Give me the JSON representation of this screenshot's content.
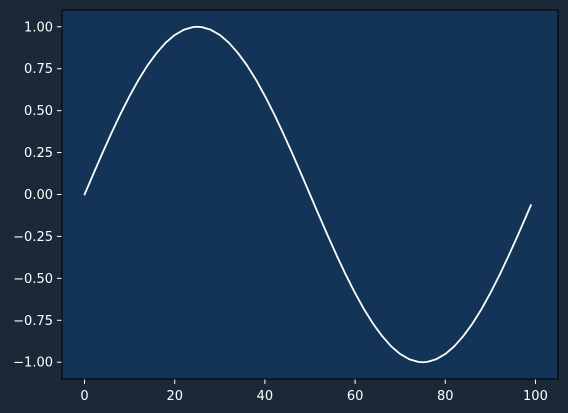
{
  "colors": {
    "figure_background": "#1b2838",
    "axes_background": "#133456",
    "line": "#ffffff",
    "text": "#ffffff",
    "axis_spine": "#000000"
  },
  "chart_data": {
    "type": "line",
    "title": "",
    "xlabel": "",
    "ylabel": "",
    "xlim": [
      -5,
      105
    ],
    "ylim": [
      -1.1,
      1.1
    ],
    "grid": false,
    "x_ticks": [
      0,
      20,
      40,
      60,
      80,
      100
    ],
    "x_tick_labels": [
      "0",
      "20",
      "40",
      "60",
      "80",
      "100"
    ],
    "y_ticks": [
      1.0,
      0.75,
      0.5,
      0.25,
      0.0,
      -0.25,
      -0.5,
      -0.75,
      -1.0
    ],
    "y_tick_labels": [
      "1.00",
      "0.75",
      "0.50",
      "0.25",
      "0.00",
      "−0.25",
      "−0.50",
      "−0.75",
      "−1.00"
    ],
    "series": [
      {
        "x": [
          0,
          2,
          4,
          6,
          8,
          10,
          12,
          14,
          16,
          18,
          20,
          22,
          24,
          25,
          26,
          28,
          30,
          32,
          34,
          36,
          38,
          40,
          42,
          44,
          46,
          48,
          50,
          52,
          54,
          56,
          58,
          60,
          62,
          64,
          66,
          68,
          70,
          72,
          74,
          75,
          76,
          78,
          80,
          82,
          84,
          86,
          88,
          90,
          92,
          94,
          96,
          98,
          99
        ],
        "y": [
          0.0,
          0.125,
          0.249,
          0.368,
          0.482,
          0.588,
          0.685,
          0.771,
          0.844,
          0.905,
          0.951,
          0.982,
          0.998,
          1.0,
          0.998,
          0.982,
          0.951,
          0.905,
          0.844,
          0.771,
          0.685,
          0.588,
          0.482,
          0.368,
          0.249,
          0.125,
          0.0,
          -0.125,
          -0.249,
          -0.368,
          -0.482,
          -0.588,
          -0.685,
          -0.771,
          -0.844,
          -0.905,
          -0.951,
          -0.982,
          -0.998,
          -1.0,
          -0.998,
          -0.982,
          -0.951,
          -0.905,
          -0.844,
          -0.771,
          -0.685,
          -0.588,
          -0.482,
          -0.368,
          -0.249,
          -0.125,
          -0.063
        ]
      }
    ]
  }
}
